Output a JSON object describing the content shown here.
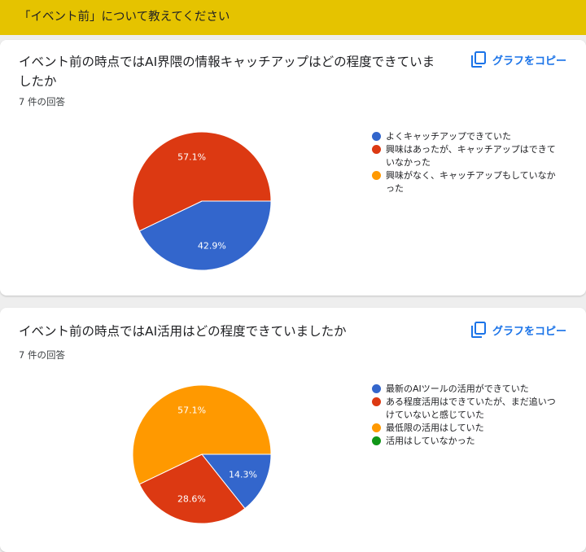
{
  "section": {
    "title": "「イベント前」について教えてください"
  },
  "copy_label": "グラフをコピー",
  "colors": {
    "blue": "#3366cc",
    "red": "#dc3912",
    "orange": "#ff9900",
    "green": "#109618",
    "accent": "#1a73e8",
    "header": "#e5c300"
  },
  "questions": [
    {
      "title": "イベント前の時点ではAI界隈の情報キャッチアップはどの程度できていましたか",
      "response_count": "7 件の回答",
      "legend": [
        {
          "label": "よくキャッチアップできていた",
          "color": "#3366cc"
        },
        {
          "label": "興味はあったが、キャッチアップはできていなかった",
          "color": "#dc3912"
        },
        {
          "label": "興味がなく、キャッチアップもしていなかった",
          "color": "#ff9900"
        }
      ]
    },
    {
      "title": "イベント前の時点ではAI活用はどの程度できていましたか",
      "response_count": "7 件の回答",
      "legend": [
        {
          "label": "最新のAIツールの活用ができていた",
          "color": "#3366cc"
        },
        {
          "label": "ある程度活用はできていたが、まだ追いつけていないと感じていた",
          "color": "#dc3912"
        },
        {
          "label": "最低限の活用はしていた",
          "color": "#ff9900"
        },
        {
          "label": "活用はしていなかった",
          "color": "#109618"
        }
      ]
    }
  ],
  "chart_data": [
    {
      "type": "pie",
      "title": "イベント前の時点ではAI界隈の情報キャッチアップはどの程度できていましたか",
      "categories": [
        "よくキャッチアップできていた",
        "興味はあったが、キャッチアップはできていなかった",
        "興味がなく、キャッチアップもしていなかった"
      ],
      "values": [
        42.9,
        57.1,
        0
      ],
      "labels": [
        "42.9%",
        "57.1%",
        ""
      ],
      "colors": [
        "#3366cc",
        "#dc3912",
        "#ff9900"
      ],
      "legend_position": "right"
    },
    {
      "type": "pie",
      "title": "イベント前の時点ではAI活用はどの程度できていましたか",
      "categories": [
        "最新のAIツールの活用ができていた",
        "ある程度活用はできていたが、まだ追いつけていないと感じていた",
        "最低限の活用はしていた",
        "活用はしていなかった"
      ],
      "values": [
        14.3,
        28.6,
        57.1,
        0
      ],
      "labels": [
        "14.3%",
        "28.6%",
        "57.1%",
        ""
      ],
      "colors": [
        "#3366cc",
        "#dc3912",
        "#ff9900",
        "#109618"
      ],
      "legend_position": "right"
    }
  ]
}
